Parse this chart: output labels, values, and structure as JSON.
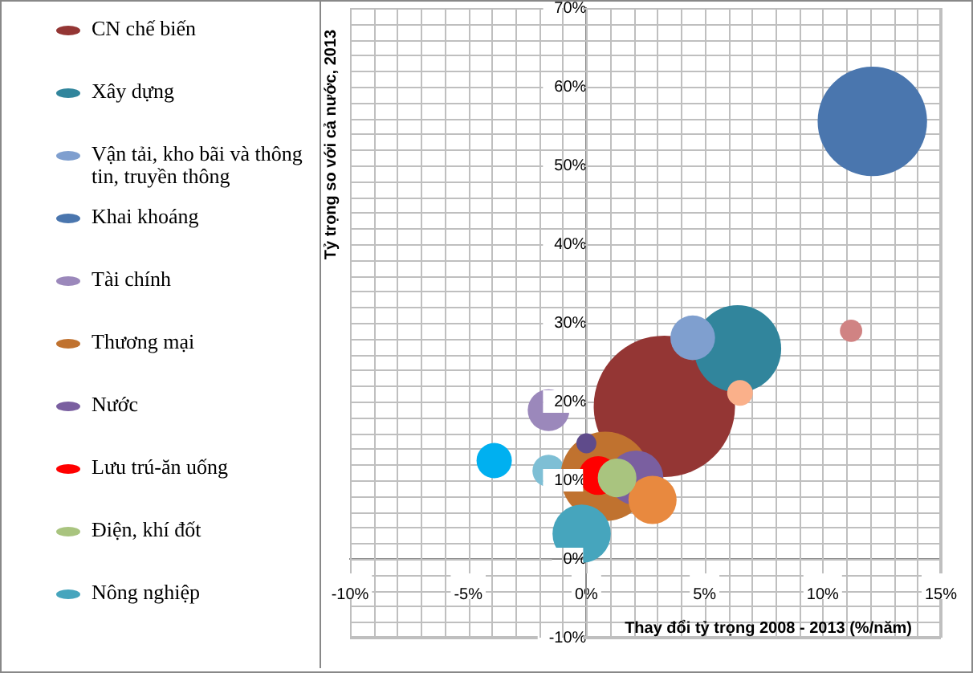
{
  "chart_data": {
    "type": "bubble",
    "xlabel": "Thay đổi tỷ trọng 2008 - 2013 (%/năm)",
    "ylabel": "Tỷ trọng so với cả nước, 2013",
    "xlim": [
      -10,
      15
    ],
    "xticks": [
      {
        "value": -10,
        "label": "-10%"
      },
      {
        "value": -9,
        "label": null
      },
      {
        "value": -8,
        "label": null
      },
      {
        "value": -7,
        "label": null
      },
      {
        "value": -6,
        "label": null
      },
      {
        "value": -5,
        "label": "-5%"
      },
      {
        "value": -4,
        "label": null
      },
      {
        "value": -3,
        "label": null
      },
      {
        "value": -2,
        "label": null
      },
      {
        "value": -1,
        "label": null
      },
      {
        "value": 0,
        "label": "0%"
      },
      {
        "value": 1,
        "label": null
      },
      {
        "value": 2,
        "label": null
      },
      {
        "value": 3,
        "label": null
      },
      {
        "value": 4,
        "label": null
      },
      {
        "value": 5,
        "label": "5%"
      },
      {
        "value": 6,
        "label": null
      },
      {
        "value": 7,
        "label": null
      },
      {
        "value": 8,
        "label": null
      },
      {
        "value": 9,
        "label": null
      },
      {
        "value": 10,
        "label": "10%"
      },
      {
        "value": 11,
        "label": null
      },
      {
        "value": 12,
        "label": null
      },
      {
        "value": 13,
        "label": null
      },
      {
        "value": 14,
        "label": null
      },
      {
        "value": 15,
        "label": "15%"
      }
    ],
    "ylim": [
      -10,
      70
    ],
    "yticks": [
      {
        "value": -10,
        "label": "-10%"
      },
      {
        "value": -8,
        "label": null
      },
      {
        "value": -6,
        "label": null
      },
      {
        "value": -4,
        "label": null
      },
      {
        "value": -2,
        "label": null
      },
      {
        "value": 0,
        "label": "0%"
      },
      {
        "value": 2,
        "label": null
      },
      {
        "value": 4,
        "label": null
      },
      {
        "value": 6,
        "label": null
      },
      {
        "value": 8,
        "label": null
      },
      {
        "value": 10,
        "label": "10%"
      },
      {
        "value": 12,
        "label": null
      },
      {
        "value": 14,
        "label": null
      },
      {
        "value": 16,
        "label": null
      },
      {
        "value": 18,
        "label": null
      },
      {
        "value": 20,
        "label": "20%"
      },
      {
        "value": 22,
        "label": null
      },
      {
        "value": 24,
        "label": null
      },
      {
        "value": 26,
        "label": null
      },
      {
        "value": 28,
        "label": null
      },
      {
        "value": 30,
        "label": "30%"
      },
      {
        "value": 32,
        "label": null
      },
      {
        "value": 34,
        "label": null
      },
      {
        "value": 36,
        "label": null
      },
      {
        "value": 38,
        "label": null
      },
      {
        "value": 40,
        "label": "40%"
      },
      {
        "value": 42,
        "label": null
      },
      {
        "value": 44,
        "label": null
      },
      {
        "value": 46,
        "label": null
      },
      {
        "value": 48,
        "label": null
      },
      {
        "value": 50,
        "label": "50%"
      },
      {
        "value": 52,
        "label": null
      },
      {
        "value": 54,
        "label": null
      },
      {
        "value": 56,
        "label": null
      },
      {
        "value": 58,
        "label": null
      },
      {
        "value": 60,
        "label": "60%"
      },
      {
        "value": 62,
        "label": null
      },
      {
        "value": 64,
        "label": null
      },
      {
        "value": 66,
        "label": null
      },
      {
        "value": 68,
        "label": null
      },
      {
        "value": 70,
        "label": "70%"
      }
    ],
    "grid": true,
    "legend": "left",
    "series": [
      {
        "name": "CN chế biến",
        "color": "#943634",
        "x": [
          3.3
        ],
        "values": [
          19.4
        ],
        "sizes": [
          1
        ]
      },
      {
        "name": "Xây dựng",
        "color": "#31859c",
        "x": [
          6.4
        ],
        "values": [
          26.7
        ],
        "sizes": [
          0.38
        ]
      },
      {
        "name": "Vận tải, kho bãi và thông tin, truyền thông",
        "color": "#7f9fcf",
        "x": [
          4.5
        ],
        "values": [
          28.1
        ],
        "sizes": [
          0.1
        ]
      },
      {
        "name": "Khai khoáng",
        "color": "#4a76ae",
        "x": [
          12.1
        ],
        "values": [
          55.6
        ],
        "sizes": [
          0.6
        ]
      },
      {
        "color": "#d08383",
        "x": [
          11.2
        ],
        "values": [
          29.0
        ],
        "sizes": [
          0.025
        ]
      },
      {
        "color": "#fab08a",
        "x": [
          6.5
        ],
        "values": [
          21.1
        ],
        "sizes": [
          0.033
        ]
      },
      {
        "name": "Tài chính",
        "color": "#9b88bb",
        "x": [
          -1.6
        ],
        "values": [
          18.9
        ],
        "sizes": [
          0.087
        ]
      },
      {
        "color": "#00b0f0",
        "x": [
          -3.9
        ],
        "values": [
          12.5
        ],
        "sizes": [
          0.0625
        ]
      },
      {
        "color": "#7ebfd5",
        "x": [
          -1.6
        ],
        "values": [
          11.2
        ],
        "sizes": [
          0.052
        ]
      },
      {
        "name": "Thương mại",
        "color": "#c0722f",
        "x": [
          0.8
        ],
        "values": [
          10.5
        ],
        "sizes": [
          0.4
        ]
      },
      {
        "color": "#5f4b8b",
        "x": [
          0
        ],
        "values": [
          14.7
        ],
        "sizes": [
          0.02
        ]
      },
      {
        "name": "Nước",
        "color": "#7a5fa0",
        "x": [
          2.1
        ],
        "values": [
          10.3
        ],
        "sizes": [
          0.15
        ]
      },
      {
        "color": "#e8893f",
        "x": [
          2.8
        ],
        "values": [
          7.5
        ],
        "sizes": [
          0.116
        ]
      },
      {
        "name": "Lưu trú-ăn uống",
        "color": "#ff0000",
        "x": [
          0.5
        ],
        "values": [
          10.6
        ],
        "sizes": [
          0.075
        ]
      },
      {
        "name": "Điện, khí đốt",
        "color": "#a9c47f",
        "x": [
          1.3
        ],
        "values": [
          10.3
        ],
        "sizes": [
          0.075
        ]
      },
      {
        "name": "Nông nghiệp",
        "color": "#46a5bd",
        "x": [
          -0.2
        ],
        "values": [
          3.2
        ],
        "sizes": [
          0.17
        ]
      }
    ]
  }
}
